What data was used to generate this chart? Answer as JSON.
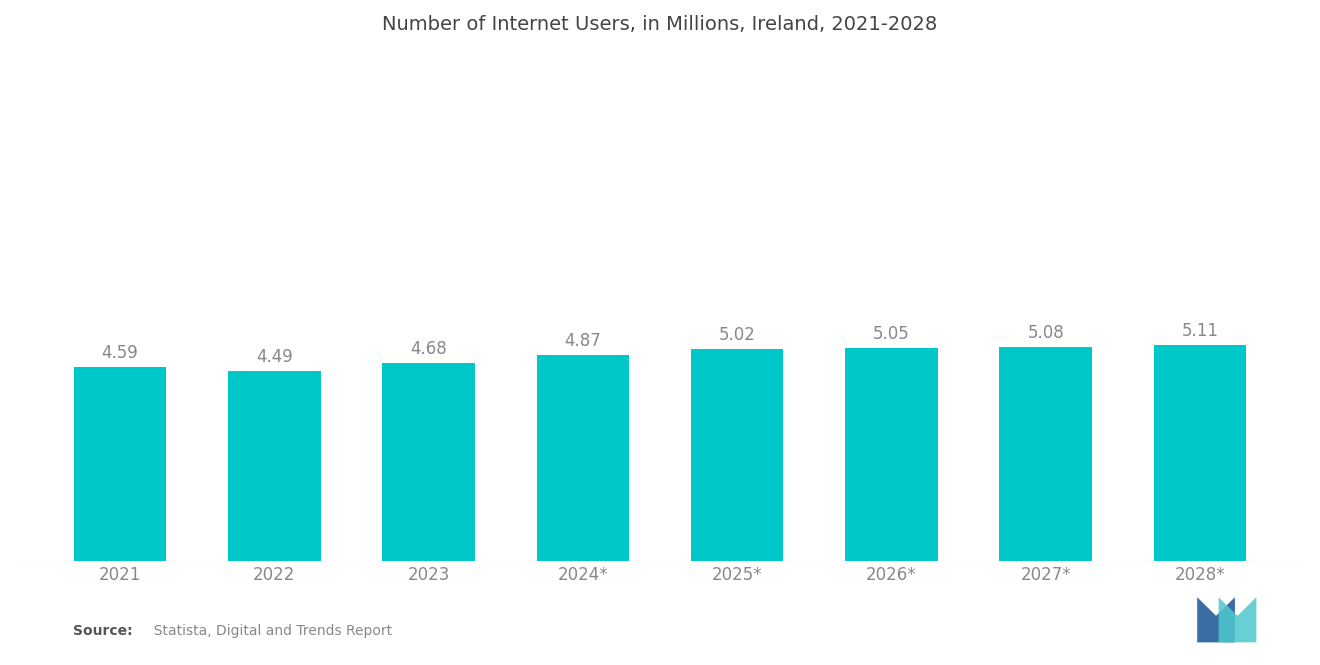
{
  "title": "Number of Internet Users, in Millions, Ireland, 2021-2028",
  "categories": [
    "2021",
    "2022",
    "2023",
    "2024*",
    "2025*",
    "2026*",
    "2027*",
    "2028*"
  ],
  "values": [
    4.59,
    4.49,
    4.68,
    4.87,
    5.02,
    5.05,
    5.08,
    5.11
  ],
  "bar_color": "#00C8C8",
  "background_color": "#ffffff",
  "title_fontsize": 14,
  "tick_fontsize": 12,
  "bar_label_fontsize": 12,
  "source_bold": "Source:",
  "source_rest": "  Statista, Digital and Trends Report",
  "ylim_min": 0,
  "ylim_max": 12.0,
  "bar_width": 0.6,
  "logo_blue": "#3A6EA5",
  "logo_teal": "#4EC8CC",
  "tick_color": "#888888",
  "label_color": "#888888",
  "title_color": "#444444"
}
